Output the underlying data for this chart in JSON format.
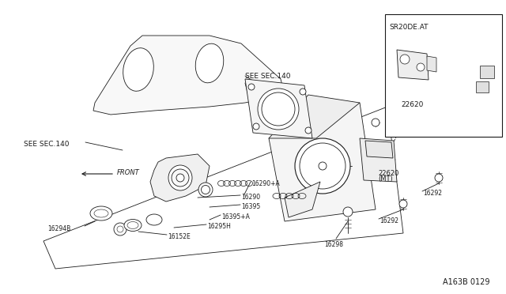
{
  "bg_color": "#ffffff",
  "line_color": "#1a1a1a",
  "fig_width": 6.4,
  "fig_height": 3.72,
  "dpi": 100,
  "watermark": "A163B 0129",
  "inset_label": "SR20DE.AT",
  "inset_sublabel": "22620"
}
